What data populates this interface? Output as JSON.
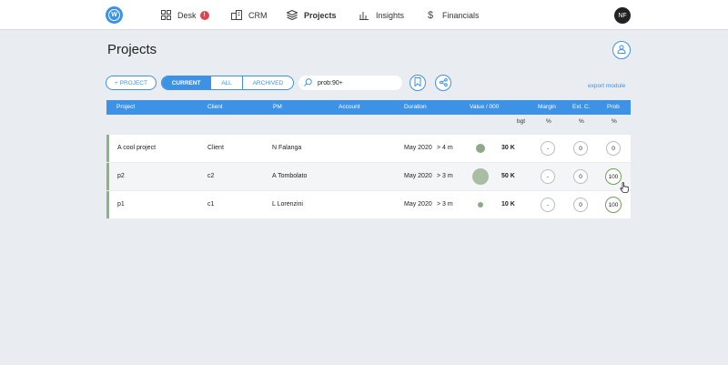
{
  "nav": {
    "logo": "W",
    "items": [
      {
        "label": "Desk",
        "badge": "!"
      },
      {
        "label": "CRM"
      },
      {
        "label": "Projects"
      },
      {
        "label": "Insights"
      },
      {
        "label": "Financials"
      }
    ],
    "avatar": "NF"
  },
  "page": {
    "title": "Projects"
  },
  "toolbar": {
    "add_project": "+ PROJECT",
    "filters": [
      "CURRENT",
      "ALL",
      "ARCHIVED"
    ],
    "search_value": "prob:90+",
    "export": "export module"
  },
  "table": {
    "headers": [
      "Project",
      "Client",
      "PM",
      "Account",
      "Duration",
      "Value / 000",
      "Margin",
      "Ext. C.",
      "Prob"
    ],
    "subheaders": {
      "value": "bgt",
      "margin": "%",
      "ext": "%",
      "prob": "%"
    },
    "rows": [
      {
        "project": "A cool project",
        "client": "Client",
        "pm": "N Falanga",
        "account": "",
        "start": "May 2020",
        "duration": "> 4 m",
        "value": "30 K",
        "margin": "-",
        "ext": "0",
        "prob": "0"
      },
      {
        "project": "p2",
        "client": "c2",
        "pm": "A Tombolato",
        "account": "",
        "start": "May 2020",
        "duration": "> 3 m",
        "value": "50 K",
        "margin": "-",
        "ext": "0",
        "prob": "100"
      },
      {
        "project": "p1",
        "client": "c1",
        "pm": "L Lorenzini",
        "account": "",
        "start": "May 2020",
        "duration": "> 3 m",
        "value": "10 K",
        "margin": "-",
        "ext": "0",
        "prob": "100"
      }
    ]
  },
  "colors": {
    "accent": "#3d92e6",
    "row_marker": "#8ab57d",
    "badge": "#e0454f"
  }
}
